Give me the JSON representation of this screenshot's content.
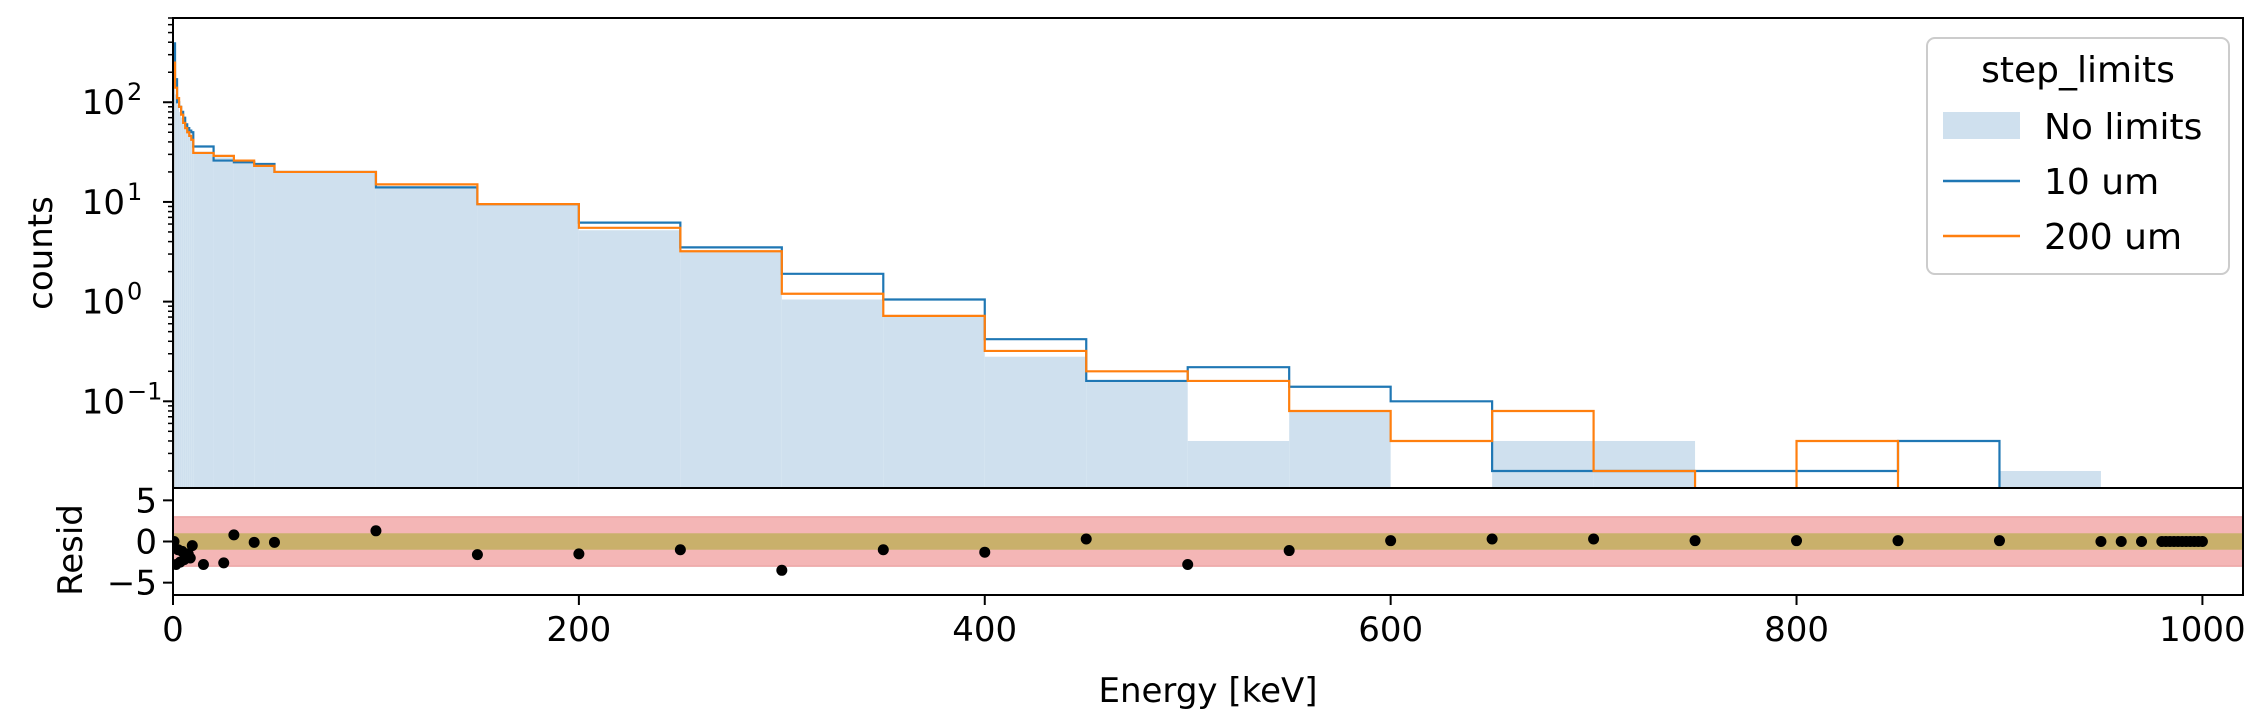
{
  "chart_data": [
    {
      "type": "step-histogram",
      "xlabel": "",
      "ylabel": "counts",
      "yscale": "log",
      "xlim": [
        0,
        1020
      ],
      "ylim": [
        0.0135,
        700
      ],
      "yticks": [
        {
          "value": 100,
          "base": "10",
          "exp": "2"
        },
        {
          "value": 10,
          "base": "10",
          "exp": "1"
        },
        {
          "value": 1,
          "base": "10",
          "exp": "0"
        },
        {
          "value": 0.1,
          "base": "10",
          "exp": "−1"
        }
      ],
      "legend": {
        "title": "step_limits",
        "position": "top-right",
        "entries": [
          {
            "label": "No limits",
            "style": "fill",
            "color": "#cfe0ee"
          },
          {
            "label": "10 um",
            "style": "line",
            "color": "#1f77b4"
          },
          {
            "label": "200 um",
            "style": "line",
            "color": "#ff7f0e"
          }
        ]
      },
      "bin_edges": [
        0,
        1,
        2,
        3,
        4,
        5,
        6,
        7,
        8,
        9,
        10,
        20,
        30,
        40,
        50,
        100,
        150,
        200,
        250,
        300,
        350,
        400,
        450,
        500,
        550,
        600,
        650,
        700,
        750,
        800,
        850,
        900,
        950,
        1000
      ],
      "series": [
        {
          "name": "No limits",
          "style": "fill",
          "color": "#cfe0ee",
          "values": [
            200,
            120,
            95,
            80,
            70,
            60,
            55,
            50,
            48,
            45,
            32,
            28,
            26,
            23,
            20,
            14,
            9.5,
            5.2,
            3.2,
            1.05,
            0.72,
            0.28,
            0.16,
            0.04,
            0.08,
            0,
            0.04,
            0.04,
            0,
            0,
            0,
            0.02,
            0
          ]
        },
        {
          "name": "10 um",
          "style": "line",
          "color": "#1f77b4",
          "values": [
            390,
            170,
            100,
            90,
            80,
            70,
            60,
            55,
            52,
            50,
            36,
            26,
            25,
            24,
            20,
            14,
            9.5,
            6.2,
            3.5,
            1.9,
            1.05,
            0.42,
            0.16,
            0.22,
            0.14,
            0.1,
            0.02,
            0.02,
            0.02,
            0.02,
            0.04,
            0,
            0
          ]
        },
        {
          "name": "200 um",
          "style": "line",
          "color": "#ff7f0e",
          "values": [
            250,
            140,
            110,
            90,
            75,
            62,
            55,
            50,
            46,
            42,
            31,
            29,
            26,
            23,
            20,
            15,
            9.5,
            5.5,
            3.2,
            1.2,
            0.72,
            0.32,
            0.2,
            0.16,
            0.08,
            0.04,
            0.08,
            0.02,
            0,
            0.04,
            0,
            0,
            0
          ]
        }
      ]
    },
    {
      "type": "scatter",
      "xlabel": "Energy [keV]",
      "ylabel": "Resid",
      "xlim": [
        0,
        1020
      ],
      "ylim": [
        -6.5,
        6.5
      ],
      "xticks": [
        0,
        200,
        400,
        600,
        800,
        1000
      ],
      "yticks": [
        5,
        0,
        -5
      ],
      "bands": [
        {
          "range": [
            -3,
            3
          ],
          "color": "#f4b6b6"
        },
        {
          "range": [
            -1,
            1
          ],
          "color": "#c9b06b"
        }
      ],
      "points": [
        [
          0.5,
          0.0
        ],
        [
          1.5,
          -2.8
        ],
        [
          2.5,
          -1.0
        ],
        [
          3.5,
          -2.5
        ],
        [
          4.5,
          -1.2
        ],
        [
          5.5,
          -2.2
        ],
        [
          6.5,
          -1.8
        ],
        [
          7.5,
          -1.5
        ],
        [
          8.5,
          -2.0
        ],
        [
          9.5,
          -0.5
        ],
        [
          15,
          -2.8
        ],
        [
          25,
          -2.6
        ],
        [
          30,
          0.8
        ],
        [
          40,
          -0.1
        ],
        [
          50,
          -0.1
        ],
        [
          100,
          1.3
        ],
        [
          150,
          -1.6
        ],
        [
          200,
          -1.5
        ],
        [
          250,
          -1.0
        ],
        [
          300,
          -3.5
        ],
        [
          350,
          -1.0
        ],
        [
          400,
          -1.3
        ],
        [
          450,
          0.3
        ],
        [
          500,
          -2.8
        ],
        [
          550,
          -1.1
        ],
        [
          600,
          0.1
        ],
        [
          650,
          0.3
        ],
        [
          700,
          0.3
        ],
        [
          750,
          0.1
        ],
        [
          800,
          0.1
        ],
        [
          850,
          0.1
        ],
        [
          900,
          0.1
        ],
        [
          950,
          0.0
        ],
        [
          960,
          0.0
        ],
        [
          970,
          0.0
        ],
        [
          980,
          0.0
        ],
        [
          982,
          0.0
        ],
        [
          984,
          0.0
        ],
        [
          986,
          0.0
        ],
        [
          988,
          0.0
        ],
        [
          990,
          0.0
        ],
        [
          992,
          0.0
        ],
        [
          994,
          0.0
        ],
        [
          996,
          0.0
        ],
        [
          998,
          0.0
        ],
        [
          1000,
          0.0
        ]
      ]
    }
  ]
}
